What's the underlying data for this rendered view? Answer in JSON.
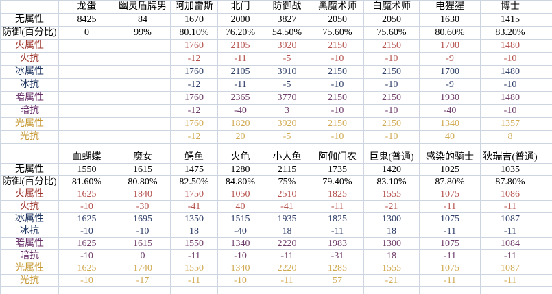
{
  "app": {
    "title": "monster-elemental-stats-spreadsheet"
  },
  "colors": {
    "background": "#ffffff",
    "gridline": "#cdd5e0",
    "header_text": "#000000"
  },
  "palette": {
    "black": {
      "label": "#000000",
      "value": "#000000"
    },
    "red": {
      "label": "#9e362e",
      "value": "#b5534e"
    },
    "navy": {
      "label": "#1e3560",
      "value": "#2e3e68"
    },
    "purple": {
      "label": "#672f68",
      "value": "#6f3d6a"
    },
    "gold": {
      "label": "#c69933",
      "value": "#d0aa52"
    }
  },
  "sections": [
    {
      "name": "stats-table-top",
      "columns": [
        "龙蛋",
        "幽灵盾牌男",
        "阿加雷斯",
        "北门",
        "防御战",
        "黑魔术师",
        "白魔术师",
        "电猩猩",
        "博士"
      ],
      "rows": [
        {
          "label": "无属性",
          "color": "black",
          "values": [
            "8425",
            "84",
            "1670",
            "2000",
            "3827",
            "2050",
            "2050",
            "1630",
            "1415"
          ]
        },
        {
          "label": "防御(百分比)",
          "color": "black",
          "values": [
            "0",
            "99%",
            "80.10%",
            "76.20%",
            "54.50%",
            "75.60%",
            "75.60%",
            "80.60%",
            "83.20%"
          ]
        },
        {
          "label": "火属性",
          "color": "red",
          "values": [
            "",
            "",
            "1760",
            "2105",
            "3920",
            "2150",
            "2150",
            "1700",
            "1480"
          ]
        },
        {
          "label": "火抗",
          "color": "red",
          "values": [
            "",
            "",
            "-12",
            "-11",
            "-5",
            "-10",
            "-10",
            "-9",
            "-10"
          ]
        },
        {
          "label": "冰属性",
          "color": "navy",
          "values": [
            "",
            "",
            "1760",
            "2105",
            "3910",
            "2150",
            "2150",
            "1700",
            "1480"
          ]
        },
        {
          "label": "冰抗",
          "color": "navy",
          "values": [
            "",
            "",
            "-12",
            "-11",
            "-5",
            "-10",
            "-10",
            "-9",
            "-10"
          ]
        },
        {
          "label": "暗属性",
          "color": "purple",
          "values": [
            "",
            "",
            "1760",
            "2365",
            "3770",
            "2150",
            "2150",
            "1930",
            "1480"
          ]
        },
        {
          "label": "暗抗",
          "color": "purple",
          "values": [
            "",
            "",
            "-12",
            "-40",
            "3",
            "-10",
            "-10",
            "-40",
            "-10"
          ]
        },
        {
          "label": "光属性",
          "color": "gold",
          "values": [
            "",
            "",
            "1760",
            "1820",
            "3920",
            "2150",
            "2150",
            "1340",
            "1357"
          ]
        },
        {
          "label": "光抗",
          "color": "gold",
          "values": [
            "",
            "",
            "-12",
            "20",
            "-5",
            "-10",
            "-10",
            "40",
            "8"
          ]
        }
      ]
    },
    {
      "name": "stats-table-bottom",
      "columns": [
        "血蝴蝶",
        "魔女",
        "鳄鱼",
        "火龟",
        "小人鱼",
        "阿伽门农",
        "巨鬼(普通)",
        "感染的骑士",
        "狄瑞吉(普通)"
      ],
      "rows": [
        {
          "label": "无属性",
          "color": "black",
          "values": [
            "1550",
            "1615",
            "1475",
            "1280",
            "2115",
            "1735",
            "1420",
            "1025",
            "1035"
          ]
        },
        {
          "label": "防御(百分比)",
          "color": "black",
          "values": [
            "81.60%",
            "80.80%",
            "82.50%",
            "84.80%",
            "75%",
            "79.40%",
            "83.10%",
            "87.80%",
            "87.80%"
          ]
        },
        {
          "label": "火属性",
          "color": "red",
          "values": [
            "1625",
            "1840",
            "1750",
            "1050",
            "2510",
            "1825",
            "1555",
            "1075",
            "1086"
          ]
        },
        {
          "label": "火抗",
          "color": "red",
          "values": [
            "-10",
            "-30",
            "-41",
            "40",
            "-41",
            "-11",
            "-21",
            "-11",
            "-11"
          ]
        },
        {
          "label": "冰属性",
          "color": "navy",
          "values": [
            "1625",
            "1695",
            "1350",
            "1515",
            "1935",
            "1825",
            "1300",
            "1075",
            "1087"
          ]
        },
        {
          "label": "冰抗",
          "color": "navy",
          "values": [
            "-10",
            "-10",
            "18",
            "-40",
            "18",
            "-11",
            "18",
            "-11",
            "-11"
          ]
        },
        {
          "label": "暗属性",
          "color": "purple",
          "values": [
            "1625",
            "1615",
            "1550",
            "1340",
            "2220",
            "1983",
            "1300",
            "1075",
            "1084"
          ]
        },
        {
          "label": "暗抗",
          "color": "purple",
          "values": [
            "-10",
            "0",
            "-11",
            "-10",
            "-11",
            "-31",
            "18",
            "-11",
            "-11"
          ]
        },
        {
          "label": "光属性",
          "color": "gold",
          "values": [
            "1625",
            "1740",
            "1550",
            "1340",
            "2220",
            "1285",
            "1555",
            "1075",
            "1087"
          ]
        },
        {
          "label": "光抗",
          "color": "gold",
          "values": [
            "-10",
            "-17",
            "-11",
            "-10",
            "-11",
            "57",
            "-21",
            "-11",
            "-11"
          ]
        }
      ]
    }
  ]
}
